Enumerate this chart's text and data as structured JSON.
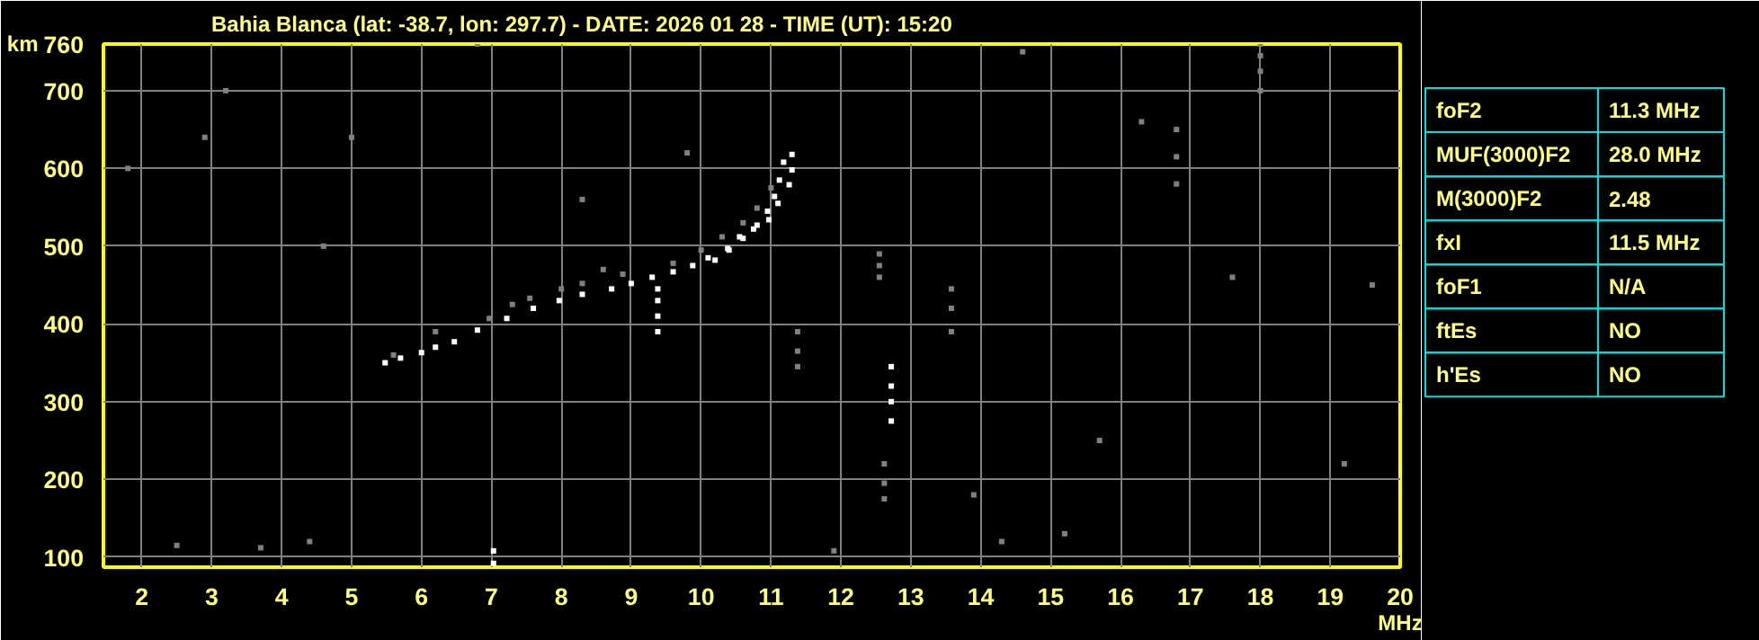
{
  "chart_data": [
    {
      "type": "scatter",
      "title": "Bahia Blanca (lat: -38.7, lon: 297.7) - DATE: 2026 01 28 - TIME (UT): 15:20",
      "xlabel": "MHz",
      "ylabel": "km",
      "marker": "square",
      "grid": true,
      "xlim": [
        1.45,
        20
      ],
      "ylim": [
        87,
        760
      ],
      "xticks": [
        2,
        3,
        4,
        5,
        6,
        7,
        8,
        9,
        10,
        11,
        12,
        13,
        14,
        15,
        16,
        17,
        18,
        19,
        20
      ],
      "yticks": [
        100,
        200,
        300,
        400,
        500,
        600,
        700,
        760
      ],
      "series": [
        {
          "color": "#ffffff",
          "x": [
            5.48,
            5.7,
            6.0,
            6.2,
            6.47,
            6.8,
            7.22,
            7.6,
            7.97,
            8.3,
            8.72,
            9.0,
            9.3,
            9.6,
            9.88,
            10.1,
            10.38,
            10.6,
            10.8,
            10.95,
            11.05,
            11.12,
            11.18,
            11.3
          ],
          "values": [
            350,
            356,
            363,
            370,
            377,
            392,
            407,
            420,
            430,
            438,
            445,
            452,
            460,
            467,
            475,
            485,
            497,
            510,
            527,
            545,
            564,
            585,
            608,
            618
          ]
        },
        {
          "color": "#ffffff",
          "x": [
            10.2,
            10.4,
            10.55,
            10.75,
            10.97,
            11.1,
            11.26,
            11.3
          ],
          "values": [
            482,
            495,
            512,
            522,
            534,
            555,
            579,
            598
          ]
        },
        {
          "color": "#808080",
          "x": [
            5.6,
            6.2,
            6.97,
            7.3,
            7.55,
            8.0,
            8.3,
            8.6,
            8.88,
            9.6,
            10.0,
            10.3,
            10.6,
            10.8,
            11.0
          ],
          "values": [
            360,
            390,
            407,
            425,
            433,
            445,
            452,
            470,
            464,
            478,
            495,
            512,
            530,
            549,
            575
          ]
        },
        {
          "color": "#ffffff",
          "x": [
            9.38,
            9.38,
            9.38,
            9.38,
            12.72,
            12.72,
            12.72,
            12.72,
            7.03,
            7.03
          ],
          "values": [
            390,
            410,
            430,
            445,
            275,
            300,
            320,
            345,
            92,
            108
          ]
        },
        {
          "color": "#808080",
          "x": [
            11.38,
            11.38,
            11.38,
            12.55,
            12.55,
            12.55,
            12.62,
            12.62,
            12.62,
            13.58,
            13.58,
            13.58,
            16.8,
            16.8,
            16.8,
            18.0,
            18.0,
            18.0,
            18.0,
            2.5,
            3.2,
            4.4,
            5.0,
            8.3,
            11.9,
            14.3,
            15.2,
            16.3,
            19.2,
            3.7,
            6.8,
            13.9,
            17.6,
            2.9,
            4.6,
            15.7,
            9.8,
            1.8,
            19.6,
            14.6
          ],
          "values": [
            345,
            365,
            390,
            460,
            475,
            490,
            175,
            195,
            220,
            390,
            420,
            445,
            580,
            615,
            650,
            700,
            725,
            745,
            760,
            115,
            700,
            120,
            640,
            560,
            108,
            120,
            130,
            660,
            220,
            112,
            760,
            180,
            460,
            640,
            500,
            250,
            620,
            600,
            450,
            750
          ]
        }
      ]
    },
    {
      "type": "other",
      "categories": [
        "foF2",
        "MUF(3000)F2",
        "M(3000)F2",
        "fxI",
        "foF1",
        "ftEs",
        "h'Es"
      ],
      "value_labels": [
        "11.3 MHz",
        "28.0 MHz",
        "2.48",
        "11.5 MHz",
        "N/A",
        "NO",
        "NO"
      ]
    }
  ]
}
